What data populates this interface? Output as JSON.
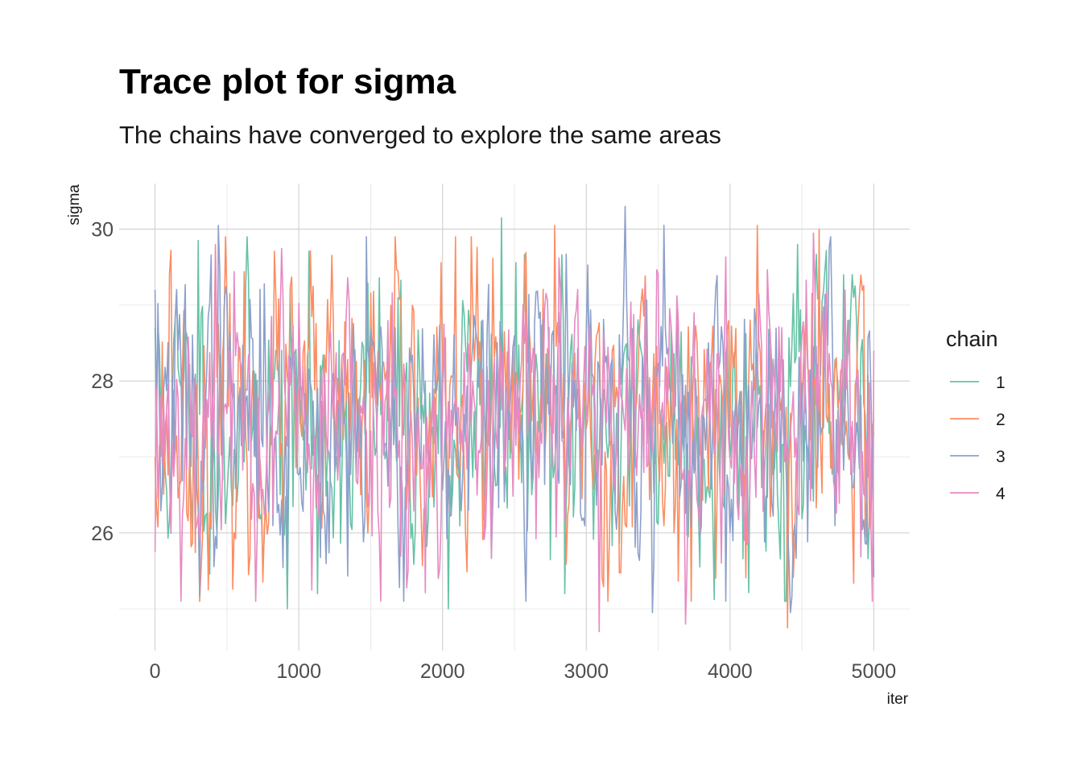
{
  "chart_data": {
    "type": "line",
    "title": "Trace plot for sigma",
    "subtitle": "The chains have converged to explore the same areas",
    "xlabel": "iter",
    "ylabel": "sigma",
    "xlim": [
      -250,
      5250
    ],
    "ylim": [
      24.45,
      30.6
    ],
    "x_ticks": [
      0,
      1000,
      2000,
      3000,
      4000,
      5000
    ],
    "x_tick_labels": [
      "0",
      "1000",
      "2000",
      "3000",
      "4000",
      "5000"
    ],
    "y_ticks": [
      26,
      28,
      30
    ],
    "y_tick_labels": [
      "26",
      "28",
      "30"
    ],
    "grid": true,
    "legend": {
      "title": "chain",
      "position": "right"
    },
    "series": [
      {
        "name": "1",
        "color": "#66c2a5",
        "seed": 11,
        "step": 10,
        "points": [
          [
            0,
            28.7
          ],
          [
            300,
            29.85
          ],
          [
            420,
            26.3
          ],
          [
            920,
            25.0
          ],
          [
            1130,
            25.2
          ],
          [
            2040,
            25.0
          ],
          [
            2410,
            30.15
          ],
          [
            2850,
            25.2
          ],
          [
            4470,
            29.8
          ],
          [
            4790,
            29.4
          ],
          [
            4980,
            26.1
          ]
        ]
      },
      {
        "name": "2",
        "color": "#fc8d62",
        "seed": 23,
        "step": 10,
        "points": [
          [
            0,
            27.0
          ],
          [
            100,
            29.4
          ],
          [
            310,
            25.1
          ],
          [
            650,
            25.45
          ],
          [
            2780,
            30.05
          ],
          [
            2200,
            29.9
          ],
          [
            4190,
            30.05
          ],
          [
            4620,
            30.0
          ],
          [
            4400,
            24.75
          ],
          [
            5000,
            27.5
          ]
        ]
      },
      {
        "name": "3",
        "color": "#8da0cb",
        "seed": 37,
        "step": 10,
        "points": [
          [
            0,
            29.2
          ],
          [
            440,
            30.05
          ],
          [
            920,
            25.5
          ],
          [
            1470,
            29.9
          ],
          [
            3270,
            30.3
          ],
          [
            3460,
            24.95
          ],
          [
            3540,
            30.05
          ],
          [
            4420,
            24.95
          ],
          [
            4990,
            26.9
          ]
        ]
      },
      {
        "name": "4",
        "color": "#e78ac3",
        "seed": 53,
        "step": 10,
        "points": [
          [
            0,
            25.75
          ],
          [
            420,
            29.8
          ],
          [
            4580,
            29.95
          ],
          [
            3090,
            24.7
          ],
          [
            3690,
            24.8
          ],
          [
            1970,
            25.4
          ],
          [
            5000,
            28.4
          ]
        ]
      }
    ]
  }
}
